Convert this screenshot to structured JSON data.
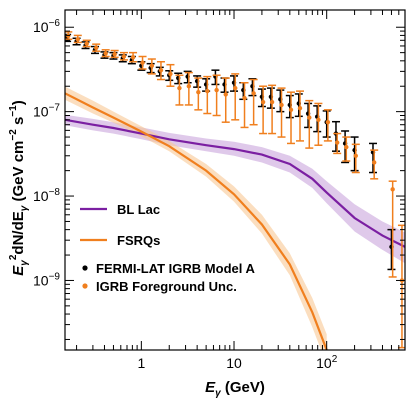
{
  "chart_data": {
    "type": "line",
    "xscale": "log",
    "yscale": "log",
    "xlim": [
      0.15,
      700
    ],
    "ylim": [
      1.5e-10,
      1.6e-06
    ],
    "xlabel": {
      "base": "E",
      "sub": "γ",
      "tail": " (GeV)"
    },
    "ylabel": {
      "base": "E",
      "sub": "γ",
      "sup": "2",
      "mid": "dN/dE",
      "sub2": "γ",
      "unit": " (GeV cm",
      "unitsup": "−2",
      "unit2": " s",
      "unitsup2": "−1",
      "close": ")"
    },
    "x_ticks": [
      {
        "value": 1,
        "label": "1"
      },
      {
        "value": 10,
        "label": "10"
      },
      {
        "value": 100,
        "label": "10",
        "sup": "2"
      }
    ],
    "y_ticks": [
      {
        "value": 1e-09,
        "label": "10",
        "sup": "−9"
      },
      {
        "value": 1e-08,
        "label": "10",
        "sup": "−8"
      },
      {
        "value": 1e-07,
        "label": "10",
        "sup": "−7"
      },
      {
        "value": 1e-06,
        "label": "10",
        "sup": "−6"
      }
    ],
    "grid": false,
    "legend_position": "lower-left",
    "series": [
      {
        "name": "BL Lac",
        "kind": "band-line",
        "color": "#7b1fa2",
        "band_color": "#c9a5dc",
        "x": [
          0.15,
          0.3,
          0.5,
          1,
          2,
          5,
          10,
          20,
          40,
          70,
          100,
          200,
          400,
          700
        ],
        "y": [
          8e-08,
          7e-08,
          6.4e-08,
          5.5e-08,
          4.7e-08,
          4e-08,
          3.6e-08,
          3.1e-08,
          2.4e-08,
          1.6e-08,
          1.1e-08,
          5.5e-09,
          3.4e-09,
          2.5e-09
        ],
        "y_low": [
          6.9e-08,
          6e-08,
          5.5e-08,
          4.7e-08,
          4e-08,
          3.4e-08,
          3e-08,
          2.5e-08,
          1.9e-08,
          1.25e-08,
          8.2e-09,
          3.8e-09,
          2.3e-09,
          1.6e-09
        ],
        "y_high": [
          9.2e-08,
          8.2e-08,
          7.5e-08,
          6.5e-08,
          5.6e-08,
          4.8e-08,
          4.4e-08,
          3.8e-08,
          3e-08,
          2.1e-08,
          1.5e-08,
          8e-09,
          5e-09,
          3.7e-09
        ]
      },
      {
        "name": "FSRQs",
        "kind": "band-line",
        "color": "#f07f1e",
        "band_color": "#f8c894",
        "x": [
          0.15,
          0.3,
          0.5,
          1,
          2,
          5,
          10,
          20,
          40,
          70,
          100
        ],
        "y": [
          1.65e-07,
          1.12e-07,
          8.5e-08,
          5.8e-08,
          3.9e-08,
          2e-08,
          1.05e-08,
          4.6e-09,
          1.55e-09,
          4.2e-10,
          1.5e-10
        ],
        "y_low": [
          1.38e-07,
          9.5e-08,
          7.4e-08,
          5.1e-08,
          3.4e-08,
          1.7e-08,
          8.6e-09,
          3.6e-09,
          1.15e-09,
          2.8e-10,
          1e-10
        ],
        "y_high": [
          1.98e-07,
          1.35e-07,
          1e-07,
          6.7e-08,
          4.5e-08,
          2.4e-08,
          1.3e-08,
          6e-09,
          2.1e-09,
          6.2e-10,
          2.3e-10
        ]
      },
      {
        "name": "FERMI-LAT IGRB Model A",
        "kind": "errorbar",
        "color": "#000000",
        "x": [
          0.158,
          0.2,
          0.25,
          0.316,
          0.4,
          0.5,
          0.63,
          0.79,
          1.0,
          1.26,
          1.58,
          2.0,
          2.5,
          3.16,
          4.0,
          5.0,
          6.3,
          7.9,
          10,
          12.6,
          15.8,
          20,
          25,
          31.6,
          40,
          50,
          63,
          79,
          100,
          126,
          158,
          200,
          316,
          500
        ],
        "y": [
          7.5e-07,
          6.8e-07,
          6.1e-07,
          5.4e-07,
          4.7e-07,
          4.6e-07,
          4.3e-07,
          4.1e-07,
          3.5e-07,
          3.3e-07,
          3e-07,
          2.7e-07,
          2.5e-07,
          2.6e-07,
          2.3e-07,
          2.1e-07,
          2.6e-07,
          2.1e-07,
          2.2e-07,
          1.8e-07,
          2e-07,
          1.5e-07,
          1.5e-07,
          1.4e-07,
          1.2e-07,
          1.25e-07,
          9.5e-08,
          8.7e-08,
          7.5e-08,
          5.5e-08,
          4.2e-08,
          3.5e-08,
          3.3e-08,
          2.5e-09
        ],
        "y_low": [
          6.8e-07,
          6.2e-07,
          5.6e-07,
          4.9e-07,
          4.3e-07,
          4.2e-07,
          3.9e-07,
          3.7e-07,
          3.1e-07,
          2.9e-07,
          2.65e-07,
          2.35e-07,
          2.15e-07,
          2.2e-07,
          1.95e-07,
          1.75e-07,
          2.1e-07,
          1.7e-07,
          1.75e-07,
          1.4e-07,
          1.55e-07,
          1.15e-07,
          1.1e-07,
          1e-07,
          8.5e-08,
          8.8e-08,
          6.5e-08,
          5.8e-08,
          5e-08,
          3.4e-08,
          2.5e-08,
          2e-08,
          1.9e-08,
          1.35e-09
        ],
        "y_high": [
          8.2e-07,
          7.4e-07,
          6.7e-07,
          5.9e-07,
          5.1e-07,
          5e-07,
          4.7e-07,
          4.5e-07,
          3.9e-07,
          3.7e-07,
          3.35e-07,
          3.05e-07,
          2.85e-07,
          3e-07,
          2.65e-07,
          2.45e-07,
          3.1e-07,
          2.5e-07,
          2.65e-07,
          2.2e-07,
          2.45e-07,
          1.85e-07,
          1.9e-07,
          1.8e-07,
          1.55e-07,
          1.62e-07,
          1.25e-07,
          1.17e-07,
          1.02e-07,
          7.6e-08,
          5.9e-08,
          5e-08,
          4.2e-08,
          4e-09
        ]
      },
      {
        "name": "IGRB Foreground Unc.",
        "kind": "errorbar",
        "color": "#f07f1e",
        "x": [
          0.158,
          0.2,
          0.25,
          0.316,
          0.4,
          0.5,
          0.63,
          0.79,
          1.0,
          1.26,
          1.58,
          2.0,
          2.5,
          3.16,
          4.0,
          5.0,
          6.3,
          7.9,
          10,
          12.6,
          15.8,
          20,
          25,
          31.6,
          40,
          50,
          63,
          79,
          100,
          126,
          158,
          200,
          316,
          500,
          630
        ],
        "y": [
          7.9e-07,
          7.2e-07,
          6.4e-07,
          5.7e-07,
          4.9e-07,
          4.8e-07,
          4.5e-07,
          4.4e-07,
          3.8e-07,
          3.5e-07,
          3.1e-07,
          2.8e-07,
          1.9e-07,
          2e-07,
          1.7e-07,
          1.75e-07,
          1.8e-07,
          1.6e-07,
          1.9e-07,
          1.45e-07,
          1.65e-07,
          1.3e-07,
          1.3e-07,
          1.2e-07,
          1.05e-07,
          1.1e-07,
          8.5e-08,
          8e-08,
          7.5e-08,
          4.3e-08,
          3.8e-08,
          3e-08,
          2.5e-08,
          1.2e-08,
          1e-09
        ],
        "y_low": [
          7.2e-07,
          6.6e-07,
          5.9e-07,
          5.2e-07,
          4.5e-07,
          4.4e-07,
          4.1e-07,
          3.9e-07,
          3.2e-07,
          2.8e-07,
          2.4e-07,
          2e-07,
          1.2e-07,
          1.2e-07,
          1.05e-07,
          9.5e-08,
          9e-08,
          7.5e-08,
          8e-08,
          6.5e-08,
          7e-08,
          5.5e-08,
          5.5e-08,
          5e-08,
          4.2e-08,
          4.5e-08,
          3.7e-08,
          4e-08,
          4.5e-08,
          3.2e-08,
          2.6e-08,
          1.9e-08,
          1.6e-08,
          1.1e-09,
          1.6e-10
        ],
        "y_high": [
          8.8e-07,
          8e-07,
          7e-07,
          6.3e-07,
          5.4e-07,
          5.3e-07,
          5e-07,
          5e-07,
          4.5e-07,
          4.2e-07,
          3.9e-07,
          3.6e-07,
          2.7e-07,
          2.9e-07,
          2.5e-07,
          2.6e-07,
          2.7e-07,
          2.5e-07,
          2.8e-07,
          2.2e-07,
          2.4e-07,
          2e-07,
          2.05e-07,
          1.9e-07,
          1.7e-07,
          1.75e-07,
          1.35e-07,
          1.25e-07,
          1.05e-07,
          5.5e-08,
          5e-08,
          4.1e-08,
          3.5e-08,
          1.5e-08,
          4.5e-09
        ]
      }
    ]
  }
}
